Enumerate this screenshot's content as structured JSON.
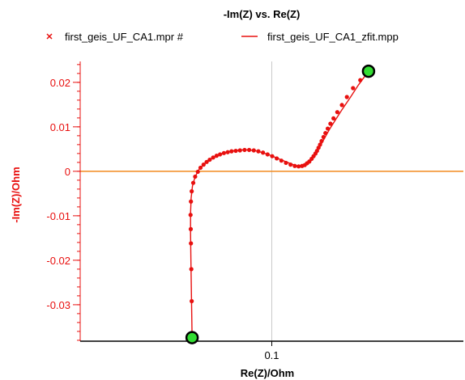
{
  "chart_data": {
    "type": "scatter",
    "title": "-Im(Z) vs. Re(Z)",
    "xlabel": "Re(Z)/Ohm",
    "ylabel": "-Im(Z)/Ohm",
    "xlim": [
      0.0,
      0.2
    ],
    "ylim": [
      -0.0382,
      0.0247
    ],
    "x_ticks": [
      0.1
    ],
    "x_tick_labels": [
      "0.1"
    ],
    "y_ticks": [
      0.02,
      0.01,
      0,
      -0.01,
      -0.02,
      -0.03
    ],
    "y_tick_labels": [
      "0.02",
      "0.01",
      "0",
      "-0.01",
      "-0.02",
      "-0.03"
    ],
    "colors": {
      "series": "#e8100f",
      "axis_label": "#e8100f",
      "zero_line": "#f28a1d",
      "cross_line": "#c9c9c9",
      "endpoint_fill": "#33dd33",
      "endpoint_stroke": "#000000",
      "bottom_axis": "#000000"
    },
    "legend": {
      "placement": "top"
    },
    "series": [
      {
        "name": "first_geis_UF_CA1.mpr #",
        "marker": "x",
        "x": [
          0.0584,
          0.0582,
          0.058,
          0.0578,
          0.0577,
          0.0576,
          0.0578,
          0.0582,
          0.059,
          0.06,
          0.0614,
          0.0628,
          0.0644,
          0.066,
          0.0676,
          0.0694,
          0.0712,
          0.073,
          0.075,
          0.077,
          0.079,
          0.0812,
          0.0834,
          0.0858,
          0.0882,
          0.0906,
          0.093,
          0.0954,
          0.0978,
          0.1002,
          0.1026,
          0.105,
          0.1074,
          0.1098,
          0.112,
          0.114,
          0.1158,
          0.1172,
          0.1184,
          0.1196,
          0.1208,
          0.1218,
          0.1228,
          0.1236,
          0.1244,
          0.1252,
          0.126,
          0.127,
          0.128,
          0.1292,
          0.1306,
          0.1322,
          0.1342,
          0.1366,
          0.1392,
          0.1424,
          0.1462,
          0.1505
        ],
        "y": [
          -0.0374,
          -0.0292,
          -0.022,
          -0.0162,
          -0.013,
          -0.0098,
          -0.0068,
          -0.0045,
          -0.0026,
          -0.0012,
          -0.0001,
          0.0008,
          0.0015,
          0.0021,
          0.0026,
          0.0031,
          0.0035,
          0.0038,
          0.0041,
          0.0043,
          0.0045,
          0.0046,
          0.0047,
          0.0048,
          0.0048,
          0.0047,
          0.0045,
          0.0042,
          0.0038,
          0.0034,
          0.0029,
          0.0024,
          0.0019,
          0.0015,
          0.0012,
          0.0011,
          0.0012,
          0.0014,
          0.0018,
          0.0022,
          0.0028,
          0.0034,
          0.004,
          0.0046,
          0.0053,
          0.006,
          0.0068,
          0.0077,
          0.0086,
          0.0096,
          0.0107,
          0.0119,
          0.0133,
          0.0149,
          0.0167,
          0.0187,
          0.0205,
          0.0225
        ]
      },
      {
        "name": "first_geis_UF_CA1_zfit.mpp",
        "marker": "line",
        "x": [
          0.0584,
          0.0581,
          0.0578,
          0.0576,
          0.0576,
          0.0579,
          0.0586,
          0.06,
          0.062,
          0.0645,
          0.0672,
          0.0702,
          0.0735,
          0.077,
          0.0806,
          0.0844,
          0.0882,
          0.0918,
          0.0952,
          0.0986,
          0.102,
          0.1054,
          0.1088,
          0.1118,
          0.1142,
          0.116,
          0.1176,
          0.119,
          0.1204,
          0.1218,
          0.1232,
          0.1246,
          0.1262,
          0.128,
          0.1302,
          0.133,
          0.1364,
          0.1405,
          0.1452,
          0.1505
        ],
        "y": [
          -0.0374,
          -0.029,
          -0.0205,
          -0.014,
          -0.0095,
          -0.006,
          -0.0033,
          -0.0012,
          0.0004,
          0.0016,
          0.0025,
          0.0033,
          0.0039,
          0.0044,
          0.0047,
          0.0048,
          0.0048,
          0.0046,
          0.0042,
          0.0037,
          0.0031,
          0.0025,
          0.0019,
          0.0014,
          0.0011,
          0.0011,
          0.0013,
          0.0017,
          0.0024,
          0.0032,
          0.0042,
          0.0052,
          0.0064,
          0.0078,
          0.0095,
          0.0114,
          0.0137,
          0.0163,
          0.0194,
          0.0225
        ]
      }
    ],
    "endpoints": [
      {
        "x": 0.0584,
        "y": -0.0374
      },
      {
        "x": 0.1505,
        "y": 0.0225
      }
    ]
  }
}
